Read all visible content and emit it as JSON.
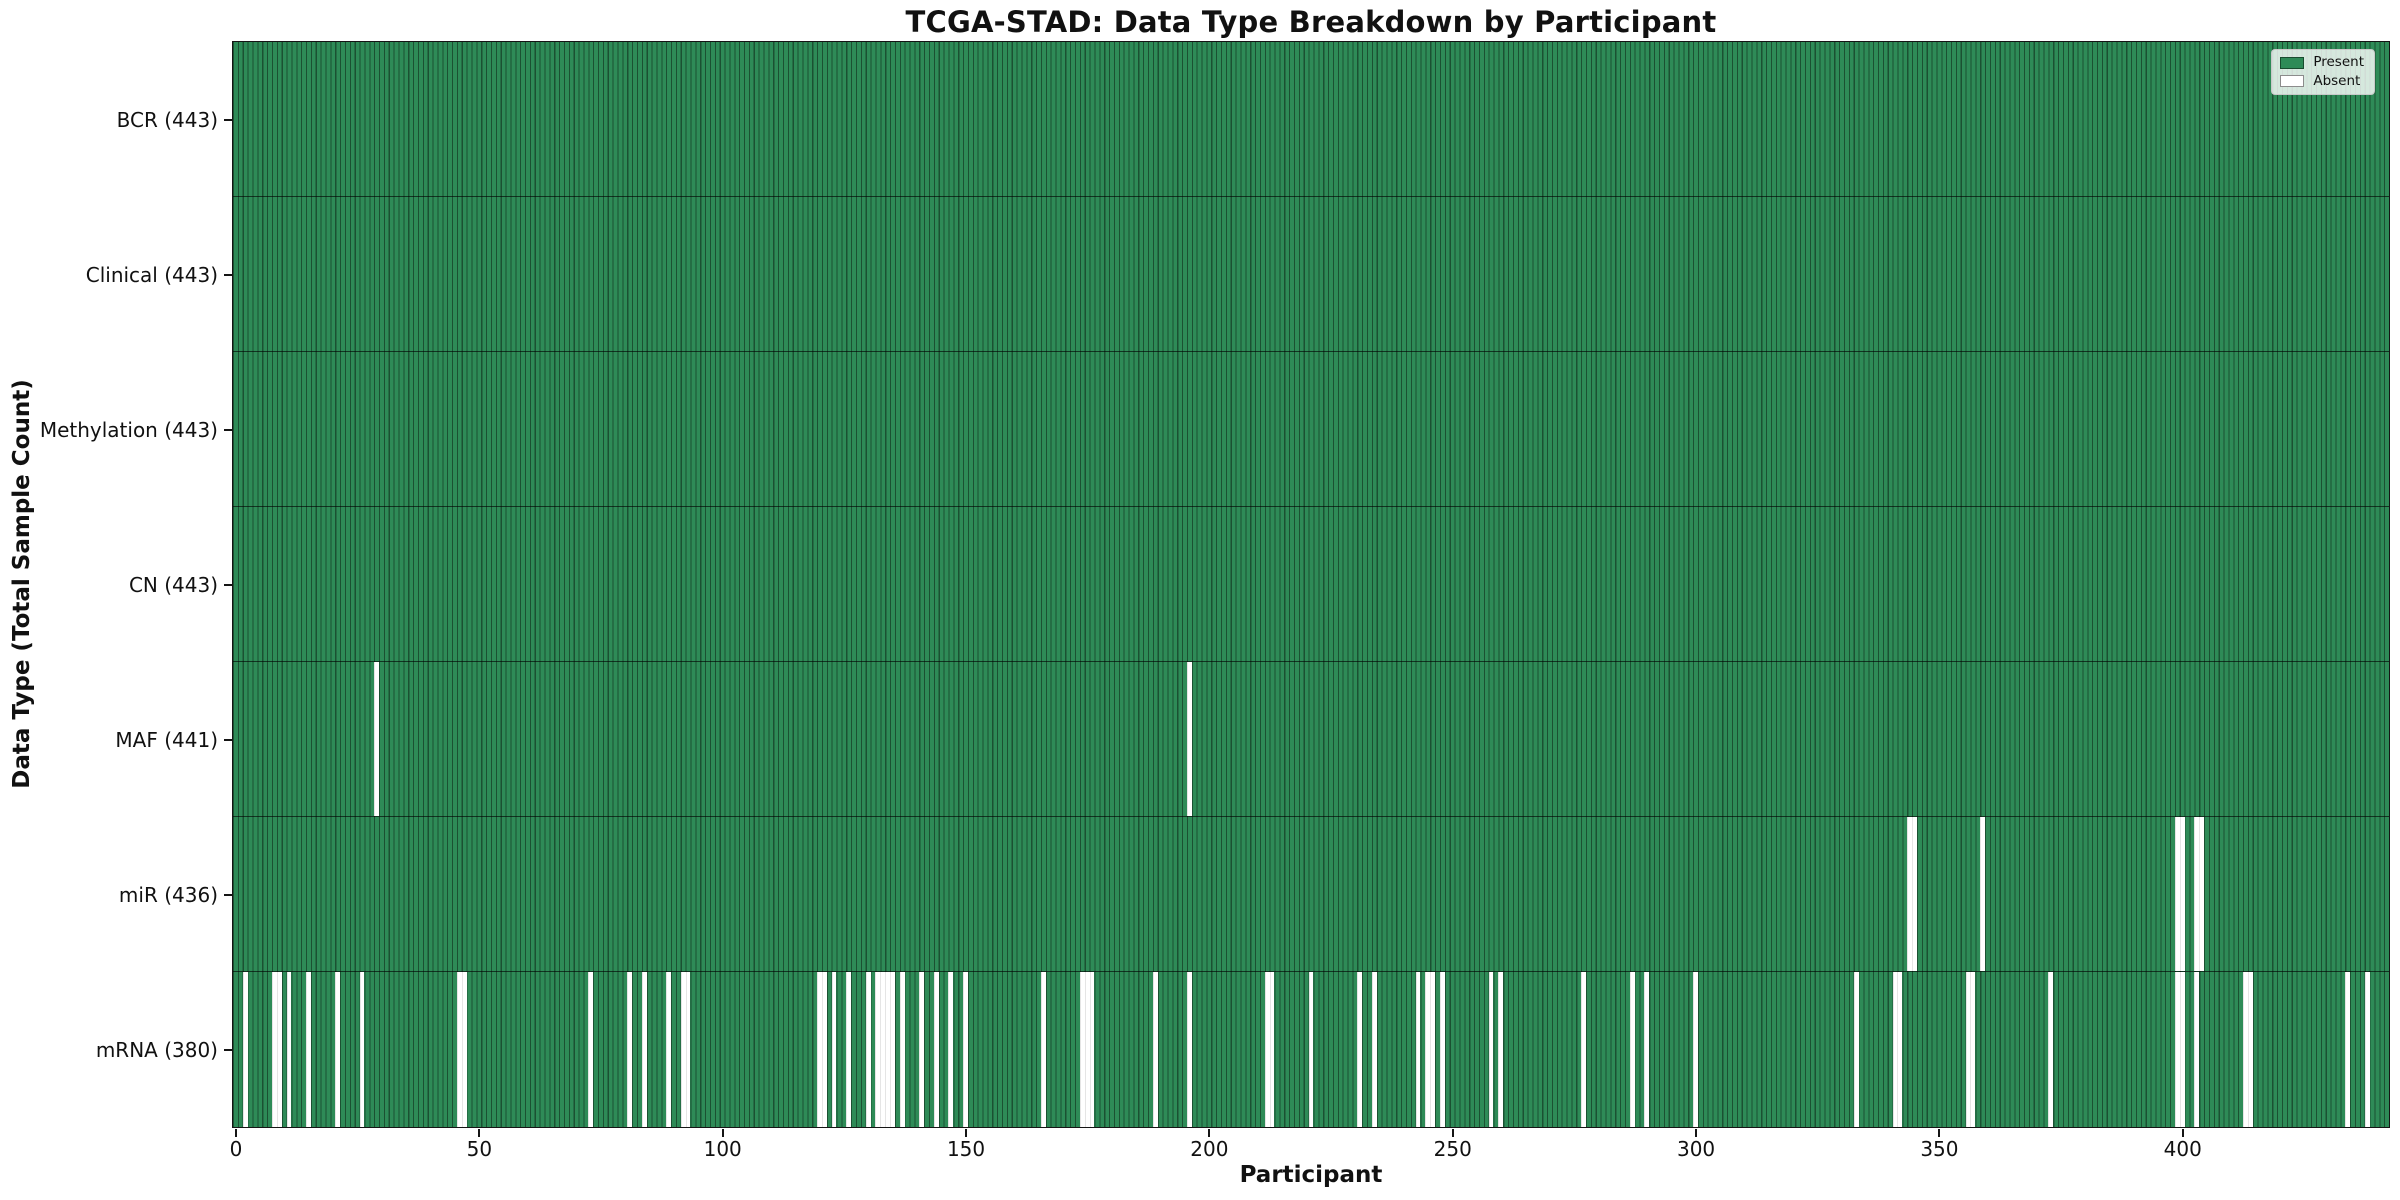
{
  "figure": {
    "title": "TCGA-STAD: Data Type Breakdown by Participant",
    "background_color": "#ffffff"
  },
  "chart_data": {
    "type": "heatmap",
    "title": "TCGA-STAD: Data Type Breakdown by Participant",
    "xlabel": "Participant",
    "ylabel": "Data Type (Total Sample Count)",
    "n_participants": 443,
    "x_axis_range": [
      -0.5,
      443.5
    ],
    "x_ticks": [
      0,
      50,
      100,
      150,
      200,
      250,
      300,
      350,
      400
    ],
    "grid": false,
    "legend": {
      "position": "upper right",
      "entries": [
        {
          "label": "Present",
          "color": "#2e8b57"
        },
        {
          "label": "Absent",
          "color": "#ffffff"
        }
      ]
    },
    "colors": {
      "present": "#2e8b57",
      "absent": "#ffffff",
      "bar_edge": "rgba(0,0,0,0.42)",
      "absent_edge": "rgba(0,0,0,0.10)",
      "row_divider": "rgba(0,0,0,0.62)",
      "spine": "#151515"
    },
    "rows": [
      {
        "name": "BCR",
        "label": "BCR (443)",
        "present_count": 443,
        "absent_participants": []
      },
      {
        "name": "Clinical",
        "label": "Clinical (443)",
        "present_count": 443,
        "absent_participants": []
      },
      {
        "name": "Methylation",
        "label": "Methylation (443)",
        "present_count": 443,
        "absent_participants": []
      },
      {
        "name": "CN",
        "label": "CN (443)",
        "present_count": 443,
        "absent_participants": []
      },
      {
        "name": "MAF",
        "label": "MAF (441)",
        "present_count": 441,
        "absent_participants": [
          29,
          196
        ]
      },
      {
        "name": "miR",
        "label": "miR (436)",
        "present_count": 436,
        "absent_participants": [
          344,
          345,
          359,
          399,
          400,
          403,
          404
        ]
      },
      {
        "name": "mRNA",
        "label": "mRNA (380)",
        "present_count": 380,
        "absent_participants": [
          2,
          8,
          9,
          11,
          15,
          21,
          26,
          46,
          47,
          73,
          81,
          84,
          89,
          92,
          93,
          120,
          121,
          123,
          126,
          130,
          132,
          133,
          134,
          135,
          137,
          141,
          144,
          147,
          150,
          166,
          174,
          175,
          176,
          189,
          196,
          212,
          213,
          221,
          231,
          234,
          243,
          245,
          246,
          248,
          258,
          260,
          277,
          287,
          290,
          300,
          333,
          341,
          342,
          356,
          357,
          373,
          399,
          400,
          403,
          413,
          414,
          434,
          438
        ]
      }
    ]
  }
}
